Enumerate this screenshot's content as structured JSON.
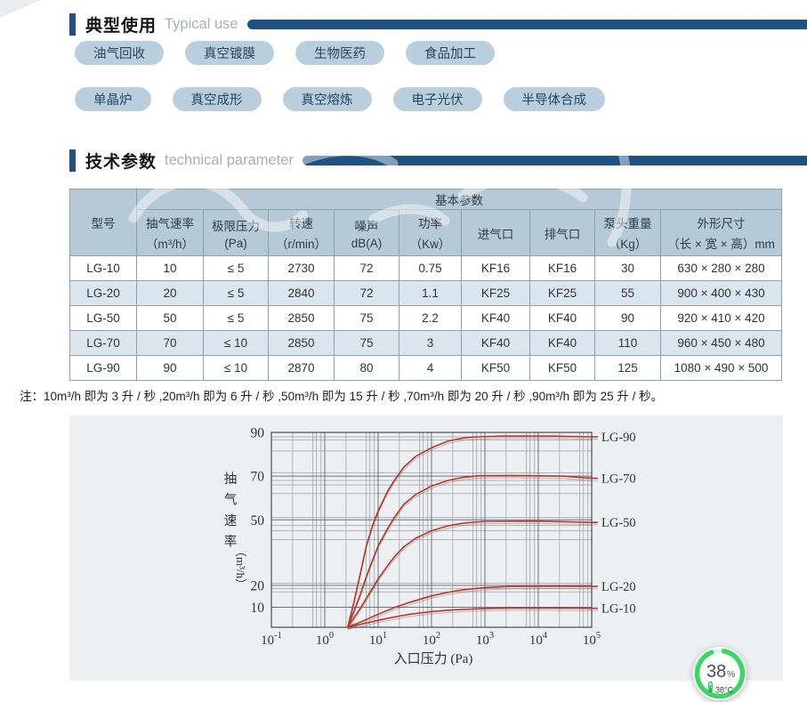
{
  "sections": {
    "typical_use": {
      "title_zh": "典型使用",
      "title_en": "Typical use"
    },
    "tech_param": {
      "title_zh": "技术参数",
      "title_en": "technical parameter"
    }
  },
  "tags": {
    "row1": [
      "油气回收",
      "真空镀膜",
      "生物医药",
      "食品加工"
    ],
    "row2": [
      "单晶炉",
      "真空成形",
      "真空熔炼",
      "电子光伏",
      "半导体合成"
    ]
  },
  "table": {
    "group_header": "基本参数",
    "columns": [
      {
        "l1": "型号",
        "l2": ""
      },
      {
        "l1": "抽气速率",
        "l2": "（m³/h）"
      },
      {
        "l1": "极限压力",
        "l2": "(Pa)"
      },
      {
        "l1": "转速",
        "l2": "（r/min）"
      },
      {
        "l1": "噪声",
        "l2": "dB(A)"
      },
      {
        "l1": "功率",
        "l2": "（Kw）"
      },
      {
        "l1": "进气口",
        "l2": ""
      },
      {
        "l1": "排气口",
        "l2": ""
      },
      {
        "l1": "泵头重量",
        "l2": "（Kg）"
      },
      {
        "l1": "外形尺寸",
        "l2": "（长 × 宽 × 高）mm"
      }
    ],
    "rows": [
      [
        "LG-10",
        "10",
        "≤ 5",
        "2730",
        "72",
        "0.75",
        "KF16",
        "KF16",
        "30",
        "630 × 280 × 280"
      ],
      [
        "LG-20",
        "20",
        "≤ 5",
        "2840",
        "72",
        "1.1",
        "KF25",
        "KF25",
        "55",
        "900 × 400 × 430"
      ],
      [
        "LG-50",
        "50",
        "≤ 5",
        "2850",
        "75",
        "2.2",
        "KF40",
        "KF40",
        "90",
        "920 × 410 × 420"
      ],
      [
        "LG-70",
        "70",
        "≤ 10",
        "2850",
        "75",
        "3",
        "KF40",
        "KF40",
        "110",
        "960 × 450 × 480"
      ],
      [
        "LG-90",
        "90",
        "≤ 10",
        "2870",
        "80",
        "4",
        "KF50",
        "KF50",
        "125",
        "1080 × 490 × 500"
      ]
    ]
  },
  "note": "注：10m³/h 即为 3 升 / 秒 ,20m³/h 即为 6 升 / 秒 ,50m³/h 即为 15 升 / 秒 ,70m³/h 即为 20 升 / 秒 ,90m³/h 即为 25 升 / 秒。",
  "chart_data": {
    "type": "line",
    "xlabel": "入口压力 (Pa)",
    "ylabel": "抽气速率",
    "ylabel_unit": "（m³/h）",
    "x_scale": "log",
    "x_tick_exponents": [
      -1,
      0,
      1,
      2,
      3,
      4,
      5
    ],
    "x_range": [
      0.1,
      100000
    ],
    "y_range": [
      1,
      90
    ],
    "y_ticks": [
      10,
      20,
      50,
      70,
      90
    ],
    "y_minor_gridlines": [
      17,
      18.5,
      21,
      41,
      45,
      47.5,
      51,
      62,
      66,
      68,
      71.5,
      81.5,
      86.5,
      88
    ],
    "x_minor_multipliers": [
      2.5,
      6,
      7,
      8.5
    ],
    "line_color": "#b03a2e",
    "grid_on": true,
    "legend_position": "right",
    "series": [
      {
        "name": "LG-90",
        "points": [
          [
            2.7,
            1
          ],
          [
            3.5,
            12
          ],
          [
            4.5,
            24
          ],
          [
            6,
            38
          ],
          [
            8,
            48
          ],
          [
            10,
            54
          ],
          [
            15,
            63
          ],
          [
            20,
            68
          ],
          [
            30,
            74
          ],
          [
            50,
            79
          ],
          [
            100,
            83
          ],
          [
            200,
            86
          ],
          [
            400,
            87.5
          ],
          [
            700,
            88
          ],
          [
            2000,
            88.3
          ],
          [
            20000,
            88.3
          ],
          [
            100000,
            88
          ]
        ]
      },
      {
        "name": "LG-70",
        "points": [
          [
            2.7,
            1
          ],
          [
            3.5,
            8
          ],
          [
            4.5,
            15
          ],
          [
            6,
            24
          ],
          [
            8,
            32
          ],
          [
            10,
            38
          ],
          [
            15,
            46
          ],
          [
            20,
            51
          ],
          [
            30,
            57
          ],
          [
            50,
            61.5
          ],
          [
            100,
            65.5
          ],
          [
            200,
            68
          ],
          [
            400,
            69.5
          ],
          [
            800,
            70.2
          ],
          [
            3000,
            70.3
          ],
          [
            30000,
            70
          ],
          [
            100000,
            69
          ]
        ]
      },
      {
        "name": "LG-50",
        "points": [
          [
            2.7,
            1
          ],
          [
            3.5,
            5
          ],
          [
            4.5,
            9
          ],
          [
            6,
            14
          ],
          [
            8,
            19
          ],
          [
            10,
            23
          ],
          [
            15,
            29
          ],
          [
            20,
            33
          ],
          [
            30,
            37.5
          ],
          [
            50,
            41.5
          ],
          [
            100,
            45
          ],
          [
            200,
            47.2
          ],
          [
            400,
            48.5
          ],
          [
            1000,
            49.3
          ],
          [
            10000,
            49.4
          ],
          [
            100000,
            48.8
          ]
        ]
      },
      {
        "name": "LG-20",
        "points": [
          [
            2.7,
            1
          ],
          [
            4,
            2.5
          ],
          [
            6,
            4.3
          ],
          [
            10,
            6.8
          ],
          [
            20,
            9.8
          ],
          [
            40,
            12.3
          ],
          [
            100,
            15.2
          ],
          [
            200,
            16.8
          ],
          [
            400,
            18
          ],
          [
            1000,
            19
          ],
          [
            3000,
            19.5
          ],
          [
            20000,
            19.6
          ],
          [
            100000,
            19.5
          ]
        ]
      },
      {
        "name": "LG-10",
        "points": [
          [
            2.7,
            1
          ],
          [
            4,
            1.8
          ],
          [
            6,
            2.7
          ],
          [
            10,
            4
          ],
          [
            20,
            5.5
          ],
          [
            40,
            6.8
          ],
          [
            100,
            8
          ],
          [
            200,
            8.6
          ],
          [
            400,
            9
          ],
          [
            1000,
            9.4
          ],
          [
            3000,
            9.6
          ],
          [
            20000,
            9.6
          ],
          [
            100000,
            9.5
          ]
        ]
      }
    ]
  },
  "monitor_badge": {
    "percent": "38",
    "percent_symbol": "%",
    "temperature": "38°C",
    "ring_color": "#3fd469",
    "icon": "thermometer-icon"
  },
  "colors": {
    "navy": "#1f5182",
    "pill_bg": "#b9cfdd",
    "table_header_bg": "#b5c9d7",
    "table_alt_row": "#dae6ee",
    "panel_bg": "#edf0f3",
    "curve_red": "#b03a2e"
  }
}
